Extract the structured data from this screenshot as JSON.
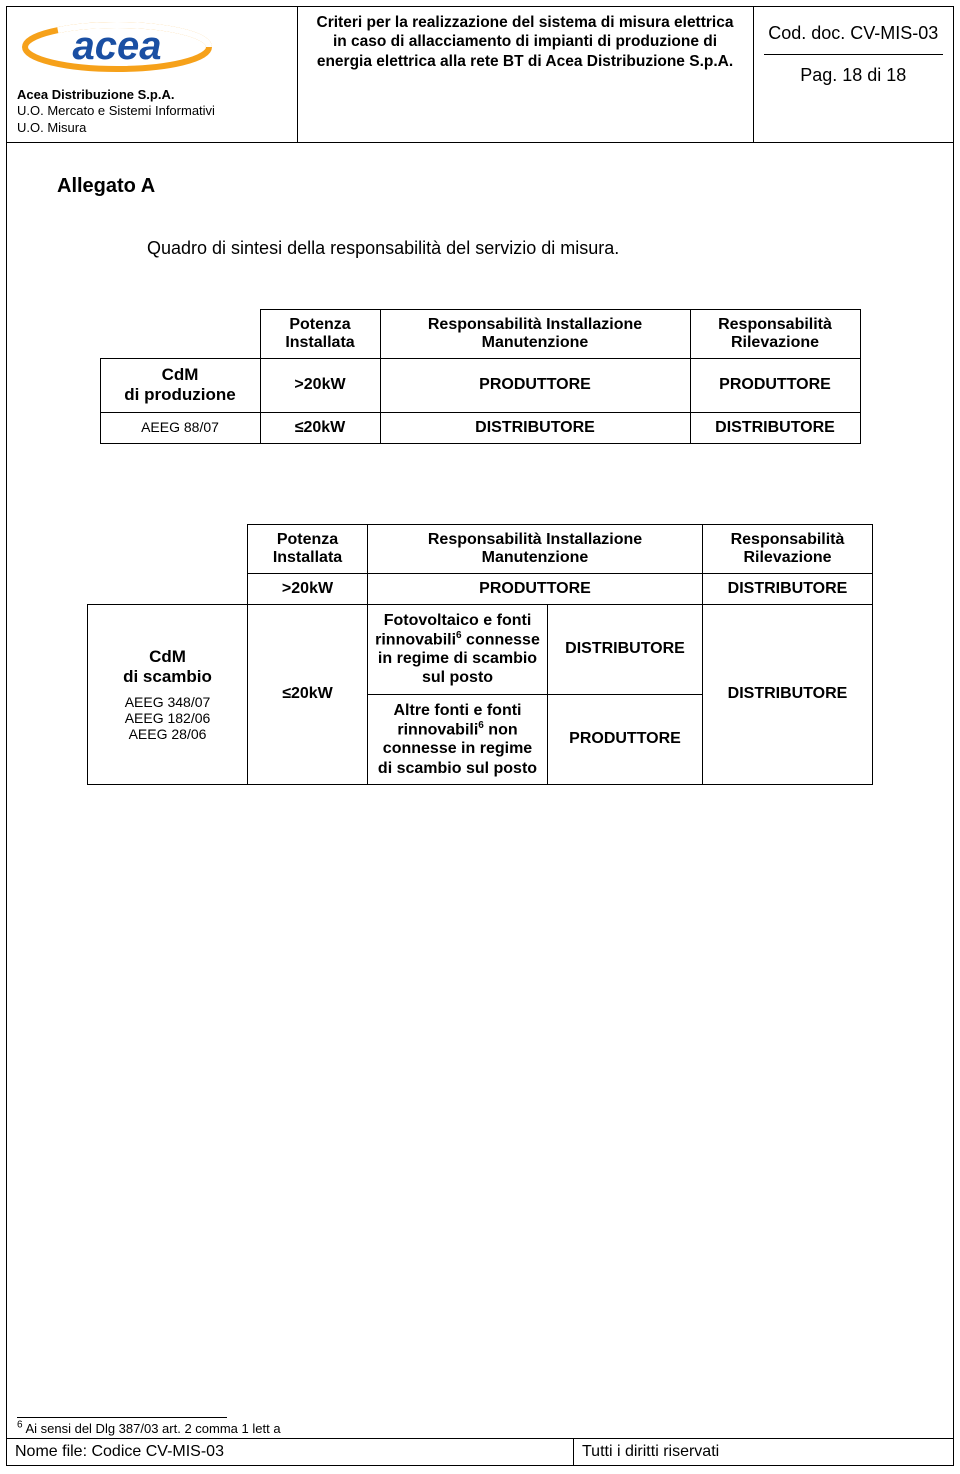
{
  "header": {
    "logo_text": "acea",
    "org_lines": [
      "Acea Distribuzione S.p.A.",
      "U.O. Mercato e Sistemi Informativi",
      "U.O. Misura"
    ],
    "center_title": "Criteri per la realizzazione del sistema di misura elettrica in caso di allacciamento di impianti di produzione di energia elettrica alla rete BT di Acea Distribuzione S.p.A.",
    "doc_code_label": "Cod. doc. CV-MIS-03",
    "page_label": "Pag. 18 di 18"
  },
  "section": {
    "allegato": "Allegato A",
    "subtitle": "Quadro di sintesi della responsabilità del servizio di misura."
  },
  "table1": {
    "headers": {
      "potenza": "Potenza Installata",
      "resp_install": "Responsabilità Installazione Manutenzione",
      "resp_rilev": "Responsabilità Rilevazione"
    },
    "left": {
      "title": "CdM",
      "sub": "di produzione",
      "ref": "AEEG 88/07"
    },
    "rows": [
      {
        "pot": ">20kW",
        "install": "PRODUTTORE",
        "rilev": "PRODUTTORE"
      },
      {
        "pot": "≤20kW",
        "install": "DISTRIBUTORE",
        "rilev": "DISTRIBUTORE"
      }
    ]
  },
  "table2": {
    "headers": {
      "potenza": "Potenza Installata",
      "resp_install": "Responsabilità Installazione Manutenzione",
      "resp_rilev": "Responsabilità Rilevazione"
    },
    "left": {
      "title": "CdM",
      "sub": "di scambio",
      "refs": [
        "AEEG 348/07",
        "AEEG 182/06",
        "AEEG 28/06"
      ]
    },
    "row_gt": {
      "pot": ">20kW",
      "install": "PRODUTTORE",
      "rilev": "DISTRIBUTORE"
    },
    "row_le": {
      "pot": "≤20kW",
      "cell_a1_html": "Fotovoltaico e fonti rinnovabili<sup>6</sup> connesse in regime di scambio sul posto",
      "cell_a1_val": "DISTRIBUTORE",
      "cell_a2_html": "Altre fonti e fonti rinnovabili<sup>6</sup> non connesse in regime di scambio sul posto",
      "cell_a2_val": "PRODUTTORE",
      "rilev": "DISTRIBUTORE"
    }
  },
  "footnote": {
    "marker": "6",
    "text": "Ai sensi del Dlg 387/03 art. 2 comma 1 lett a"
  },
  "footer": {
    "file_label": "Nome file:  Codice CV-MIS-03",
    "rights": "Tutti i diritti riservati"
  },
  "colors": {
    "logo_blue": "#1a4fa3",
    "logo_orange": "#f6a11a",
    "text": "#000000",
    "bg": "#ffffff"
  }
}
